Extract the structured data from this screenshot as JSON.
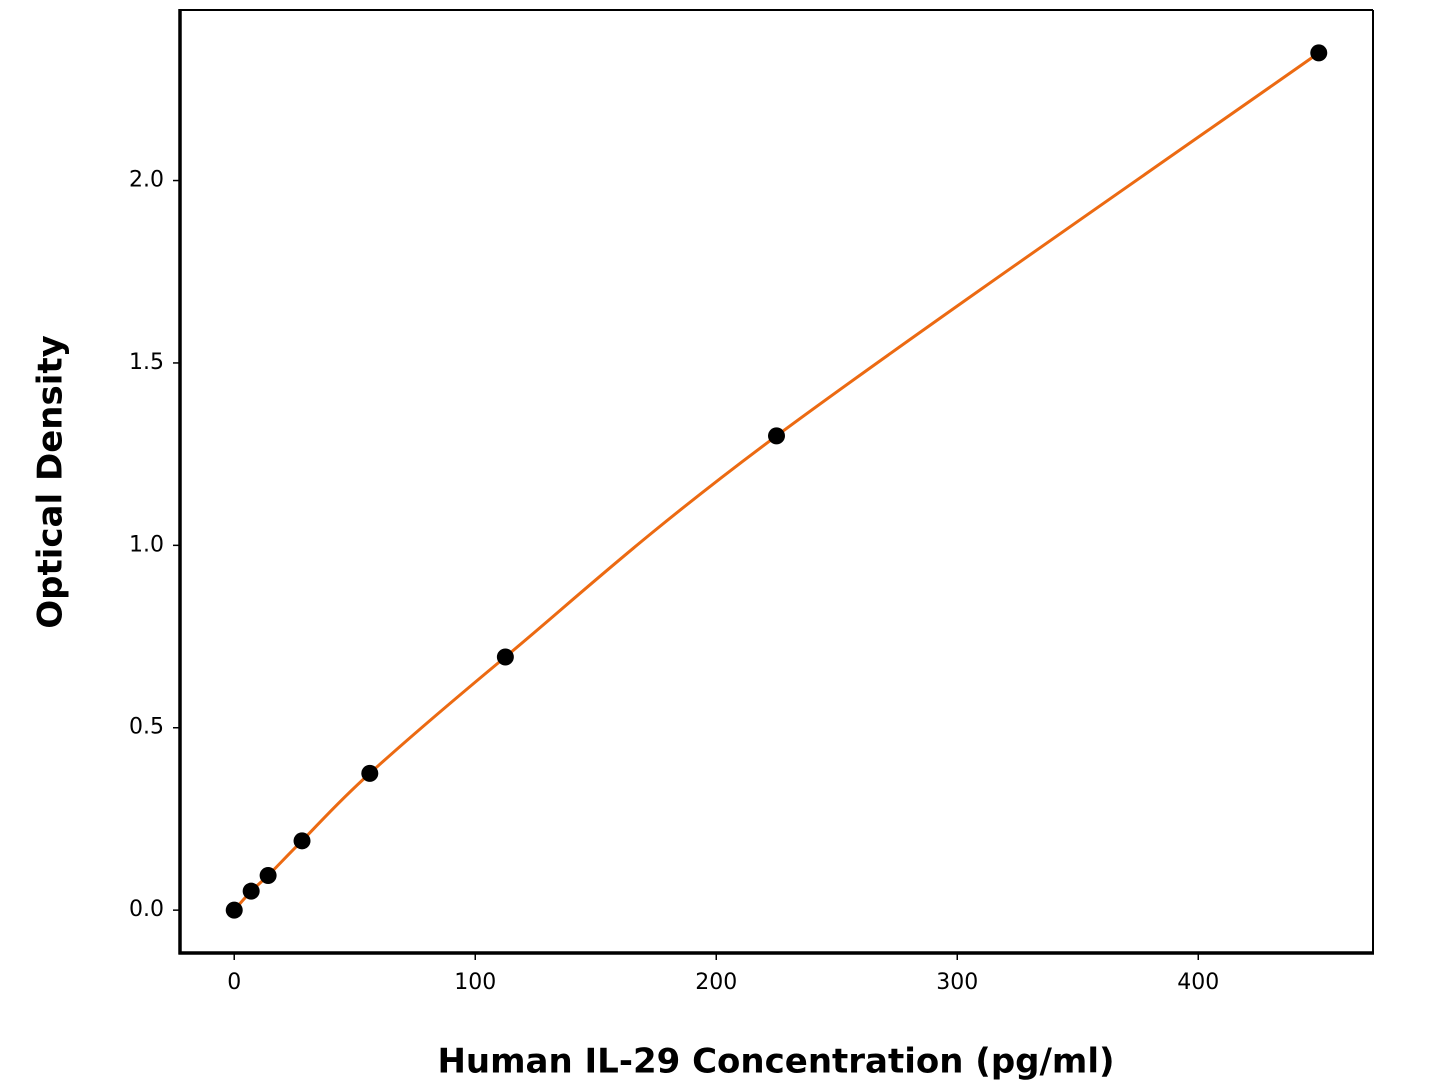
{
  "chart_data": {
    "type": "scatter",
    "x_label": "Human IL-29 Concentration (pg/ml)",
    "y_label": "Optical Density",
    "x": [
      0,
      7.03,
      14.06,
      28.13,
      56.25,
      112.5,
      225,
      450
    ],
    "values": [
      0,
      0.052,
      0.095,
      0.19,
      0.375,
      0.694,
      1.3,
      2.35
    ],
    "marker_color": "#000000",
    "line_color": "#ec6a12",
    "curve": "smooth",
    "xlim": [
      -22.5,
      472.5
    ],
    "ylim": [
      -0.1175,
      2.4675
    ],
    "xticks": [
      0,
      100,
      200,
      300,
      400
    ],
    "yticks": [
      {
        "value": 0,
        "label": "0.0"
      },
      0.5,
      {
        "value": 1,
        "label": "1.0"
      },
      1.5,
      {
        "value": 2,
        "label": "2.0"
      }
    ],
    "grid": false
  }
}
